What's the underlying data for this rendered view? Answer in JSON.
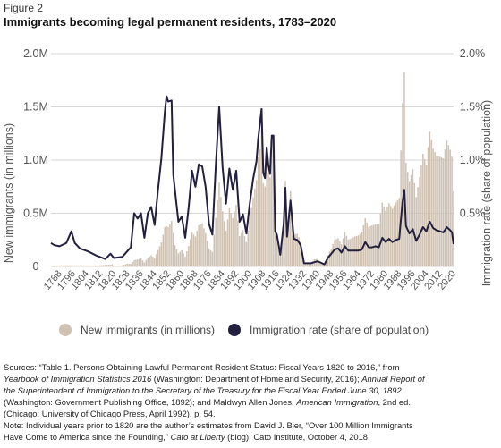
{
  "figure_label": "Figure 2",
  "title": "Immigrants becoming legal permanent residents, 1783–2020",
  "chart_data": {
    "type": "bar+line",
    "title": "Immigrants becoming legal permanent residents, 1783–2020",
    "ylabel": "New immigrants (in millions)",
    "y2label": "Immigration rate (share of population)",
    "ylim": [
      0,
      2.0
    ],
    "y2lim": [
      0,
      2.0
    ],
    "y_ticks": [
      "0",
      "0.5M",
      "1.0M",
      "1.5M",
      "2.0M"
    ],
    "y2_ticks": [
      "0.5%",
      "1.0%",
      "1.5%",
      "2.0%"
    ],
    "x_tick_labels": [
      "1788",
      "1796",
      "1804",
      "1812",
      "1820",
      "1828",
      "1836",
      "1844",
      "1852",
      "1860",
      "1868",
      "1876",
      "1884",
      "1892",
      "1900",
      "1908",
      "1916",
      "1924",
      "1932",
      "1940",
      "1948",
      "1956",
      "1964",
      "1972",
      "1980",
      "1988",
      "1996",
      "2004",
      "2012",
      "2020"
    ],
    "grid": true,
    "legend_position": "bottom",
    "colors": {
      "bars": "#cfc2b3",
      "line": "#22203e",
      "grid": "#d6d6d6"
    },
    "series": [
      {
        "name": "New immigrants (in millions)",
        "kind": "bar",
        "axis": "left",
        "points": [
          [
            1783,
            0.005
          ],
          [
            1790,
            0.01
          ],
          [
            1800,
            0.01
          ],
          [
            1810,
            0.008
          ],
          [
            1819,
            0.02
          ],
          [
            1820,
            0.008
          ],
          [
            1825,
            0.01
          ],
          [
            1828,
            0.027
          ],
          [
            1830,
            0.024
          ],
          [
            1832,
            0.06
          ],
          [
            1834,
            0.065
          ],
          [
            1836,
            0.076
          ],
          [
            1838,
            0.038
          ],
          [
            1840,
            0.084
          ],
          [
            1842,
            0.104
          ],
          [
            1844,
            0.078
          ],
          [
            1846,
            0.154
          ],
          [
            1848,
            0.226
          ],
          [
            1850,
            0.37
          ],
          [
            1851,
            0.38
          ],
          [
            1852,
            0.37
          ],
          [
            1854,
            0.428
          ],
          [
            1856,
            0.2
          ],
          [
            1858,
            0.123
          ],
          [
            1860,
            0.153
          ],
          [
            1862,
            0.092
          ],
          [
            1864,
            0.193
          ],
          [
            1866,
            0.319
          ],
          [
            1868,
            0.282
          ],
          [
            1870,
            0.387
          ],
          [
            1872,
            0.405
          ],
          [
            1874,
            0.313
          ],
          [
            1876,
            0.17
          ],
          [
            1878,
            0.138
          ],
          [
            1880,
            0.457
          ],
          [
            1882,
            0.789
          ],
          [
            1884,
            0.519
          ],
          [
            1886,
            0.335
          ],
          [
            1888,
            0.547
          ],
          [
            1890,
            0.455
          ],
          [
            1892,
            0.579
          ],
          [
            1894,
            0.286
          ],
          [
            1896,
            0.343
          ],
          [
            1898,
            0.229
          ],
          [
            1900,
            0.449
          ],
          [
            1902,
            0.649
          ],
          [
            1904,
            0.813
          ],
          [
            1905,
            1.026
          ],
          [
            1906,
            1.1
          ],
          [
            1907,
            1.285
          ],
          [
            1908,
            0.783
          ],
          [
            1909,
            0.752
          ],
          [
            1910,
            1.042
          ],
          [
            1911,
            0.879
          ],
          [
            1912,
            0.838
          ],
          [
            1913,
            1.198
          ],
          [
            1914,
            1.218
          ],
          [
            1915,
            0.327
          ],
          [
            1916,
            0.299
          ],
          [
            1918,
            0.11
          ],
          [
            1920,
            0.43
          ],
          [
            1921,
            0.805
          ],
          [
            1922,
            0.31
          ],
          [
            1924,
            0.707
          ],
          [
            1926,
            0.305
          ],
          [
            1928,
            0.307
          ],
          [
            1930,
            0.242
          ],
          [
            1932,
            0.036
          ],
          [
            1934,
            0.03
          ],
          [
            1936,
            0.036
          ],
          [
            1938,
            0.068
          ],
          [
            1940,
            0.071
          ],
          [
            1942,
            0.029
          ],
          [
            1944,
            0.029
          ],
          [
            1946,
            0.108
          ],
          [
            1948,
            0.171
          ],
          [
            1950,
            0.249
          ],
          [
            1952,
            0.266
          ],
          [
            1954,
            0.208
          ],
          [
            1956,
            0.322
          ],
          [
            1958,
            0.253
          ],
          [
            1960,
            0.265
          ],
          [
            1962,
            0.283
          ],
          [
            1964,
            0.292
          ],
          [
            1966,
            0.323
          ],
          [
            1968,
            0.454
          ],
          [
            1970,
            0.373
          ],
          [
            1972,
            0.385
          ],
          [
            1974,
            0.395
          ],
          [
            1976,
            0.399
          ],
          [
            1978,
            0.601
          ],
          [
            1980,
            0.524
          ],
          [
            1982,
            0.594
          ],
          [
            1984,
            0.544
          ],
          [
            1986,
            0.602
          ],
          [
            1988,
            0.643
          ],
          [
            1989,
            1.09
          ],
          [
            1990,
            1.536
          ],
          [
            1991,
            1.827
          ],
          [
            1992,
            0.974
          ],
          [
            1994,
            0.804
          ],
          [
            1996,
            0.915
          ],
          [
            1998,
            0.653
          ],
          [
            2000,
            0.841
          ],
          [
            2002,
            1.059
          ],
          [
            2004,
            0.958
          ],
          [
            2005,
            1.122
          ],
          [
            2006,
            1.266
          ],
          [
            2008,
            1.107
          ],
          [
            2010,
            1.043
          ],
          [
            2012,
            1.031
          ],
          [
            2014,
            1.016
          ],
          [
            2016,
            1.183
          ],
          [
            2018,
            1.097
          ],
          [
            2019,
            1.032
          ],
          [
            2020,
            0.707
          ]
        ]
      },
      {
        "name": "Immigration rate (share of population)",
        "kind": "line",
        "axis": "right",
        "points": [
          [
            1783,
            0.22
          ],
          [
            1785,
            0.2
          ],
          [
            1788,
            0.19
          ],
          [
            1792,
            0.22
          ],
          [
            1795,
            0.33
          ],
          [
            1797,
            0.22
          ],
          [
            1800,
            0.17
          ],
          [
            1805,
            0.14
          ],
          [
            1810,
            0.1
          ],
          [
            1815,
            0.07
          ],
          [
            1818,
            0.12
          ],
          [
            1820,
            0.08
          ],
          [
            1825,
            0.09
          ],
          [
            1830,
            0.18
          ],
          [
            1832,
            0.5
          ],
          [
            1834,
            0.45
          ],
          [
            1836,
            0.5
          ],
          [
            1838,
            0.27
          ],
          [
            1840,
            0.5
          ],
          [
            1842,
            0.56
          ],
          [
            1844,
            0.39
          ],
          [
            1846,
            0.72
          ],
          [
            1848,
            1.02
          ],
          [
            1850,
            1.45
          ],
          [
            1851,
            1.6
          ],
          [
            1852,
            1.55
          ],
          [
            1854,
            1.56
          ],
          [
            1855,
            0.86
          ],
          [
            1858,
            0.42
          ],
          [
            1860,
            0.47
          ],
          [
            1862,
            0.27
          ],
          [
            1864,
            0.55
          ],
          [
            1866,
            0.9
          ],
          [
            1868,
            0.75
          ],
          [
            1870,
            0.96
          ],
          [
            1872,
            0.94
          ],
          [
            1874,
            0.75
          ],
          [
            1876,
            0.4
          ],
          [
            1878,
            0.3
          ],
          [
            1880,
            0.95
          ],
          [
            1882,
            1.5
          ],
          [
            1884,
            0.93
          ],
          [
            1886,
            0.59
          ],
          [
            1888,
            0.92
          ],
          [
            1890,
            0.72
          ],
          [
            1892,
            0.9
          ],
          [
            1894,
            0.42
          ],
          [
            1896,
            0.49
          ],
          [
            1898,
            0.31
          ],
          [
            1900,
            0.59
          ],
          [
            1902,
            0.82
          ],
          [
            1904,
            0.99
          ],
          [
            1905,
            1.2
          ],
          [
            1907,
            1.48
          ],
          [
            1908,
            0.88
          ],
          [
            1909,
            0.83
          ],
          [
            1910,
            1.12
          ],
          [
            1911,
            0.95
          ],
          [
            1912,
            0.87
          ],
          [
            1913,
            1.23
          ],
          [
            1914,
            1.23
          ],
          [
            1915,
            0.33
          ],
          [
            1916,
            0.3
          ],
          [
            1918,
            0.11
          ],
          [
            1920,
            0.4
          ],
          [
            1921,
            0.74
          ],
          [
            1922,
            0.28
          ],
          [
            1924,
            0.62
          ],
          [
            1926,
            0.26
          ],
          [
            1928,
            0.25
          ],
          [
            1930,
            0.2
          ],
          [
            1932,
            0.03
          ],
          [
            1936,
            0.03
          ],
          [
            1940,
            0.05
          ],
          [
            1944,
            0.02
          ],
          [
            1946,
            0.08
          ],
          [
            1948,
            0.12
          ],
          [
            1950,
            0.16
          ],
          [
            1952,
            0.17
          ],
          [
            1954,
            0.13
          ],
          [
            1956,
            0.19
          ],
          [
            1958,
            0.15
          ],
          [
            1960,
            0.15
          ],
          [
            1962,
            0.15
          ],
          [
            1964,
            0.15
          ],
          [
            1966,
            0.16
          ],
          [
            1968,
            0.23
          ],
          [
            1970,
            0.18
          ],
          [
            1972,
            0.18
          ],
          [
            1974,
            0.19
          ],
          [
            1976,
            0.18
          ],
          [
            1978,
            0.27
          ],
          [
            1980,
            0.23
          ],
          [
            1982,
            0.26
          ],
          [
            1984,
            0.23
          ],
          [
            1986,
            0.25
          ],
          [
            1988,
            0.26
          ],
          [
            1989,
            0.44
          ],
          [
            1990,
            0.61
          ],
          [
            1991,
            0.72
          ],
          [
            1992,
            0.38
          ],
          [
            1994,
            0.31
          ],
          [
            1996,
            0.35
          ],
          [
            1998,
            0.24
          ],
          [
            2000,
            0.3
          ],
          [
            2002,
            0.37
          ],
          [
            2004,
            0.33
          ],
          [
            2005,
            0.38
          ],
          [
            2006,
            0.42
          ],
          [
            2008,
            0.36
          ],
          [
            2010,
            0.34
          ],
          [
            2012,
            0.33
          ],
          [
            2014,
            0.32
          ],
          [
            2016,
            0.37
          ],
          [
            2018,
            0.34
          ],
          [
            2019,
            0.32
          ],
          [
            2020,
            0.21
          ]
        ]
      }
    ]
  },
  "sources": {
    "line1_a": "Sources: “Table 1. Persons Obtaining Lawful Permanent Resident Status: Fiscal Years 1820 to 2016,” from",
    "line2_i1": "Yearbook of Immigration Statistics 2016",
    "line2_b": " (Washington: Department of Homeland Security, 2016); ",
    "line2_i2": "Annual Report of",
    "line3_i": "the Superintendent of Immigration to the Secretary of the Treasury for the Fiscal Year Ended June 30, 1892",
    "line4_a": "(Washington: Government Publishing Office, 1892); and Maldwyn Allen Jones, ",
    "line4_i": "American Immigration",
    "line4_b": ", 2nd ed.",
    "line5": "(Chicago: University of Chicago Press, April 1992), p. 54.",
    "note_line1": "Note: Individual years prior to 1820 are the author’s estimates from David J. Bier, “Over 100 Million Immigrants",
    "note_line2_a": "Have Come to America since the Founding,” ",
    "note_line2_i": "Cato at Liberty",
    "note_line2_b": " (blog), Cato Institute, October 4, 2018."
  }
}
